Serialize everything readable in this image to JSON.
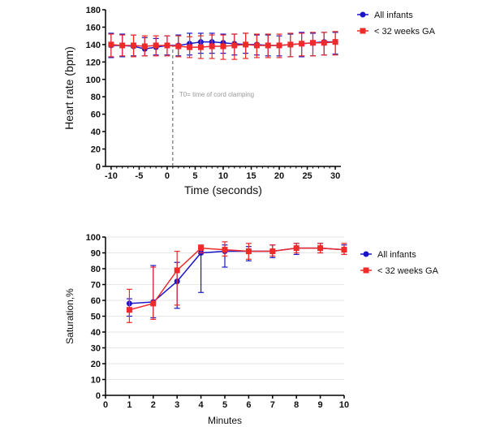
{
  "colors": {
    "all_infants": "#1a16c8",
    "preterm": "#ee2a2a",
    "annotation_line": "#555555",
    "annotation_text": "#999999"
  },
  "chart_data": [
    {
      "type": "line",
      "xlabel": "Time  (seconds)",
      "ylabel": "Heart rate  (bpm)",
      "xlim": [
        -11,
        31
      ],
      "ylim": [
        0,
        180
      ],
      "xticks": [
        -10,
        -5,
        0,
        5,
        10,
        15,
        20,
        25,
        30
      ],
      "yticks": [
        0,
        20,
        40,
        60,
        80,
        100,
        120,
        140,
        160,
        180
      ],
      "grid": false,
      "legend_position": "top-right",
      "annotation": {
        "x": 1,
        "label": "T0= time of cord clamping"
      },
      "series": [
        {
          "name": "All infants",
          "marker": "circle",
          "x": [
            -10,
            -8,
            -6,
            -4,
            -2,
            0,
            2,
            4,
            6,
            8,
            10,
            12,
            14,
            16,
            18,
            20,
            22,
            24,
            26,
            28,
            30
          ],
          "y": [
            139,
            139,
            138,
            135,
            137,
            139,
            139,
            141,
            143,
            143,
            142,
            141,
            140,
            140,
            139,
            139,
            140,
            141,
            142,
            143,
            143
          ],
          "err_low": [
            125,
            126,
            127,
            127,
            128,
            128,
            127,
            128,
            130,
            130,
            130,
            128,
            130,
            128,
            127,
            127,
            126,
            126,
            127,
            128,
            129
          ],
          "err_high": [
            153,
            152,
            151,
            148,
            147,
            150,
            151,
            153,
            153,
            153,
            152,
            152,
            153,
            151,
            151,
            150,
            152,
            154,
            153,
            154,
            154
          ]
        },
        {
          "name": "< 32 weeks GA",
          "marker": "square",
          "x": [
            -10,
            -8,
            -6,
            -4,
            -2,
            0,
            2,
            4,
            6,
            8,
            10,
            12,
            14,
            16,
            18,
            20,
            22,
            24,
            26,
            28,
            30
          ],
          "y": [
            140,
            139,
            139,
            138,
            139,
            139,
            138,
            137,
            137,
            138,
            138,
            139,
            140,
            139,
            139,
            139,
            140,
            141,
            142,
            142,
            143
          ],
          "err_low": [
            126,
            127,
            126,
            127,
            127,
            127,
            126,
            125,
            124,
            124,
            123,
            123,
            124,
            125,
            125,
            125,
            126,
            127,
            127,
            128,
            128
          ],
          "err_high": [
            152,
            151,
            151,
            150,
            150,
            150,
            150,
            149,
            150,
            151,
            151,
            152,
            153,
            152,
            152,
            152,
            153,
            153,
            154,
            154,
            155
          ]
        }
      ]
    },
    {
      "type": "line",
      "xlabel": "Minutes",
      "ylabel": "Saturation,%",
      "xlim": [
        0,
        10
      ],
      "ylim": [
        0,
        100
      ],
      "xticks": [
        0,
        1,
        2,
        3,
        4,
        5,
        6,
        7,
        8,
        9,
        10
      ],
      "yticks": [
        0,
        10,
        20,
        30,
        40,
        50,
        60,
        70,
        80,
        90,
        100
      ],
      "grid": true,
      "legend_position": "right",
      "series": [
        {
          "name": "All infants",
          "marker": "circle",
          "x": [
            1,
            2,
            3,
            4,
            5,
            6,
            7,
            8,
            9,
            10
          ],
          "y": [
            58,
            59,
            72,
            90,
            91,
            91,
            91,
            93,
            93,
            92
          ],
          "err_low": [
            50,
            49,
            55,
            65,
            81,
            85,
            87,
            89,
            90,
            89
          ],
          "err_high": [
            61,
            82,
            84,
            93,
            95,
            94,
            95,
            96,
            96,
            95
          ]
        },
        {
          "name": "< 32 weeks GA",
          "marker": "square",
          "x": [
            1,
            2,
            3,
            4,
            5,
            6,
            7,
            8,
            9,
            10
          ],
          "y": [
            54,
            58,
            79,
            93,
            92,
            91,
            91,
            93,
            93,
            92
          ],
          "err_low": [
            46,
            48,
            57,
            90,
            88,
            86,
            88,
            90,
            90,
            89
          ],
          "err_high": [
            67,
            81,
            91,
            95,
            97,
            96,
            95,
            96,
            96,
            96
          ]
        }
      ]
    }
  ]
}
